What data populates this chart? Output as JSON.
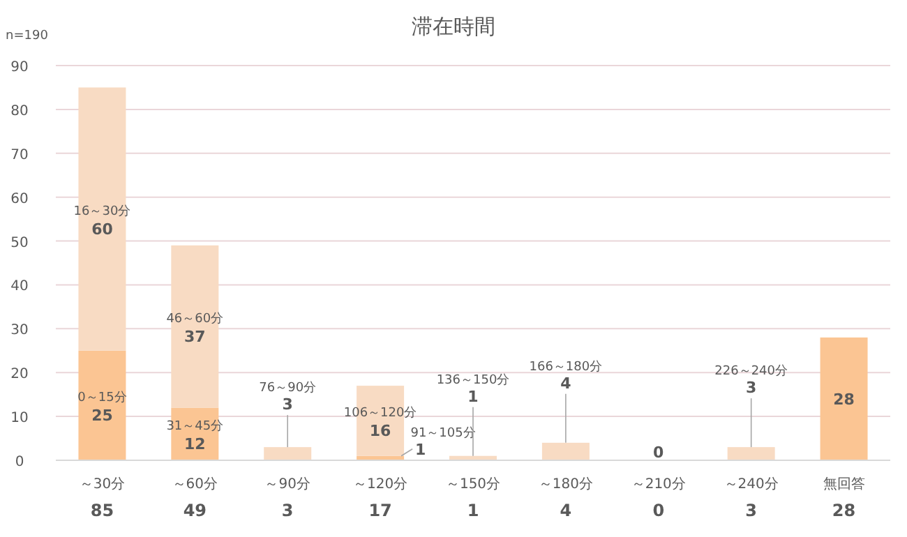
{
  "chart_data": {
    "type": "bar",
    "title": "滞在時間",
    "stacked": true,
    "grid": "y",
    "categories": [
      "～30分",
      "～60分",
      "～90分",
      "～120分",
      "～150分",
      "～180分",
      "～210分",
      "～240分",
      "無回答"
    ],
    "series": [
      {
        "color": "#fbc593",
        "values": [
          25,
          12,
          0,
          1,
          0,
          0,
          0,
          0,
          28
        ],
        "value_labels": [
          "25",
          "12",
          null,
          "1",
          null,
          null,
          null,
          null,
          "28"
        ]
      },
      {
        "color": "#f8dbc3",
        "values": [
          60,
          37,
          3,
          16,
          1,
          4,
          0,
          3,
          null
        ],
        "value_labels": [
          "60",
          "37",
          "3",
          "16",
          "1",
          "4",
          "0",
          "3",
          null
        ]
      }
    ],
    "totals": [
      "85",
      "49",
      "3",
      "17",
      "1",
      "4",
      "0",
      "3",
      "28"
    ],
    "ylim": [
      0,
      90
    ],
    "yticks": [
      0,
      10,
      20,
      30,
      40,
      50,
      60,
      70,
      80,
      90
    ],
    "annotations": [
      "n=190",
      "0～15分",
      "16～30分",
      "31～45分",
      "46～60分",
      "76～90分",
      "91～105分",
      "106～120分",
      "136～150分",
      "166～180分",
      "226～240分"
    ]
  }
}
